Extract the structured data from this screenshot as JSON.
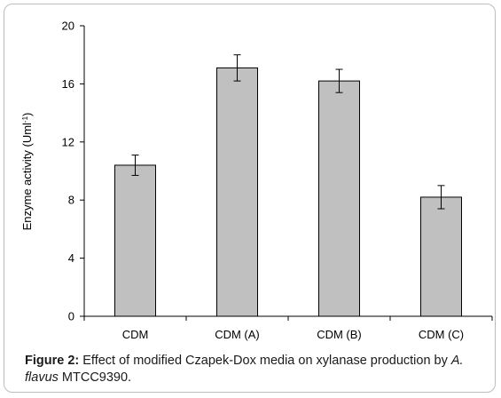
{
  "chart_data": {
    "type": "bar",
    "categories": [
      "CDM",
      "CDM (A)",
      "CDM (B)",
      "CDM (C)"
    ],
    "values": [
      10.4,
      17.1,
      16.2,
      8.2
    ],
    "errors": [
      0.7,
      0.9,
      0.8,
      0.8
    ],
    "ylabel": "Enzyme activity (Uml",
    "ylabel_sup": "-1",
    "ylabel_close": ")",
    "ylim": [
      0,
      20
    ],
    "yticks": [
      0,
      4,
      8,
      12,
      16,
      20
    ],
    "bar_color": "#c0c0c0",
    "grid": false
  },
  "caption": {
    "figure_label": "Figure 2:",
    "text_part1": " Effect of modified Czapek-Dox media on xylanase production by ",
    "italic_part": "A. flavus",
    "text_part2": " MTCC9390."
  }
}
